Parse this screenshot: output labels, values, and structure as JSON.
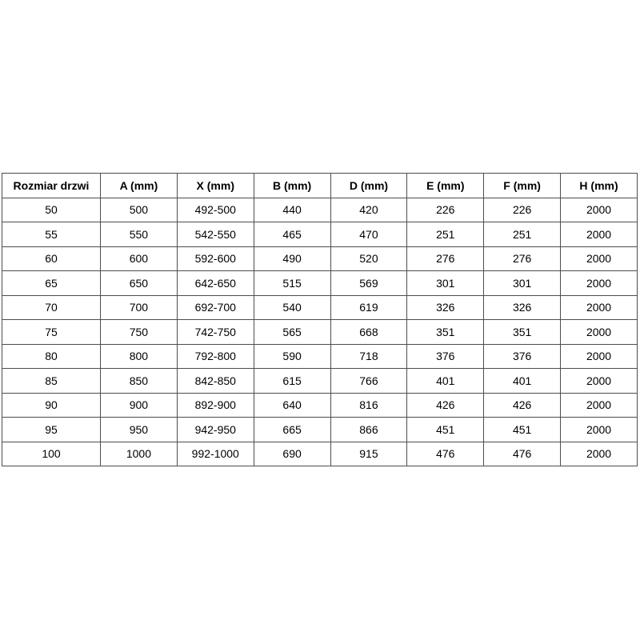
{
  "table": {
    "name": "door-size-dimensions",
    "headers": [
      "Rozmiar drzwi",
      "A (mm)",
      "X (mm)",
      "B (mm)",
      "D (mm)",
      "E (mm)",
      "F (mm)",
      "H (mm)"
    ],
    "rows": [
      [
        "50",
        "500",
        "492-500",
        "440",
        "420",
        "226",
        "226",
        "2000"
      ],
      [
        "55",
        "550",
        "542-550",
        "465",
        "470",
        "251",
        "251",
        "2000"
      ],
      [
        "60",
        "600",
        "592-600",
        "490",
        "520",
        "276",
        "276",
        "2000"
      ],
      [
        "65",
        "650",
        "642-650",
        "515",
        "569",
        "301",
        "301",
        "2000"
      ],
      [
        "70",
        "700",
        "692-700",
        "540",
        "619",
        "326",
        "326",
        "2000"
      ],
      [
        "75",
        "750",
        "742-750",
        "565",
        "668",
        "351",
        "351",
        "2000"
      ],
      [
        "80",
        "800",
        "792-800",
        "590",
        "718",
        "376",
        "376",
        "2000"
      ],
      [
        "85",
        "850",
        "842-850",
        "615",
        "766",
        "401",
        "401",
        "2000"
      ],
      [
        "90",
        "900",
        "892-900",
        "640",
        "816",
        "426",
        "426",
        "2000"
      ],
      [
        "95",
        "950",
        "942-950",
        "665",
        "866",
        "451",
        "451",
        "2000"
      ],
      [
        "100",
        "1000",
        "992-1000",
        "690",
        "915",
        "476",
        "476",
        "2000"
      ]
    ],
    "colors": {
      "border": "#4d4d4d",
      "text": "#000000",
      "background": "#ffffff"
    }
  }
}
